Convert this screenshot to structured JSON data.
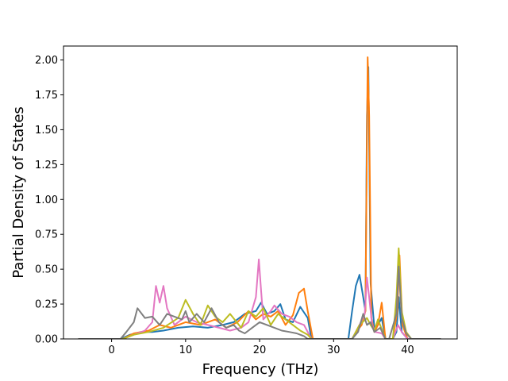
{
  "chart_data": {
    "type": "line",
    "title": "",
    "xlabel": "Frequency (THz)",
    "ylabel": "Partial Density of States",
    "xlim": [
      -6.5,
      46.7
    ],
    "ylim": [
      0.0,
      2.1
    ],
    "xticks": [
      0,
      10,
      20,
      30,
      40
    ],
    "xtick_labels": [
      "0",
      "10",
      "20",
      "30",
      "40"
    ],
    "yticks": [
      0.0,
      0.25,
      0.5,
      0.75,
      1.0,
      1.25,
      1.5,
      1.75,
      2.0
    ],
    "ytick_labels": [
      "0.00",
      "0.25",
      "0.50",
      "0.75",
      "1.00",
      "1.25",
      "1.50",
      "1.75",
      "2.00"
    ],
    "grid": false,
    "series": [
      {
        "color": "#1f77b4",
        "x": [
          -4.5,
          1.2,
          2.5,
          4,
          5.5,
          7,
          9,
          11,
          13,
          15,
          16.5,
          18,
          19.5,
          20.2,
          21,
          22,
          22.8,
          23.5,
          24.5,
          25.5,
          26.5,
          27,
          32,
          32.5,
          33,
          33.5,
          34,
          34.3,
          34.5,
          34.7,
          35,
          35.5,
          36,
          36.5,
          37,
          38,
          38.5,
          38.8,
          39.2,
          40,
          40.5,
          44.5
        ],
        "y": [
          0.0,
          0.0,
          0.03,
          0.05,
          0.05,
          0.06,
          0.08,
          0.09,
          0.08,
          0.1,
          0.12,
          0.18,
          0.2,
          0.26,
          0.18,
          0.2,
          0.25,
          0.14,
          0.12,
          0.23,
          0.15,
          0.0,
          0.0,
          0.2,
          0.38,
          0.46,
          0.3,
          0.2,
          1.6,
          1.95,
          0.4,
          0.08,
          0.1,
          0.15,
          0.0,
          0.0,
          0.05,
          0.3,
          0.05,
          0.0,
          0.0,
          0.0
        ]
      },
      {
        "color": "#ff7f0e",
        "x": [
          -4.5,
          1.5,
          3,
          5,
          6.5,
          8,
          10,
          12,
          14,
          15.5,
          17,
          18.5,
          19.5,
          20.5,
          21.5,
          22.5,
          23.5,
          24.5,
          25.3,
          26,
          26.5,
          27.2,
          32.5,
          33.2,
          33.8,
          34.3,
          34.6,
          34.8,
          35.1,
          35.5,
          36,
          36.5,
          37,
          38,
          38.6,
          38.9,
          39.3,
          40,
          40.5,
          44.5
        ],
        "y": [
          0.0,
          0.0,
          0.04,
          0.06,
          0.1,
          0.08,
          0.12,
          0.1,
          0.14,
          0.08,
          0.12,
          0.2,
          0.14,
          0.18,
          0.16,
          0.2,
          0.1,
          0.17,
          0.33,
          0.36,
          0.2,
          0.0,
          0.0,
          0.06,
          0.1,
          0.2,
          2.02,
          1.6,
          0.15,
          0.05,
          0.1,
          0.26,
          0.0,
          0.0,
          0.2,
          0.6,
          0.1,
          0.0,
          0.0,
          0.0
        ]
      },
      {
        "color": "#e377c2",
        "x": [
          -4.5,
          1.5,
          3,
          4.5,
          5.5,
          6,
          6.5,
          7,
          7.5,
          8.5,
          10,
          11.5,
          13,
          14.5,
          16,
          17.5,
          18.5,
          19.5,
          19.9,
          20.2,
          20.5,
          21.5,
          22,
          23,
          24,
          25,
          26,
          27,
          32.5,
          33.5,
          34.2,
          34.5,
          34.8,
          35.2,
          35.6,
          36.5,
          37,
          38,
          38.7,
          39.2,
          40,
          44.5
        ],
        "y": [
          0.0,
          0.0,
          0.03,
          0.06,
          0.12,
          0.38,
          0.26,
          0.38,
          0.22,
          0.1,
          0.16,
          0.12,
          0.1,
          0.08,
          0.06,
          0.08,
          0.12,
          0.3,
          0.57,
          0.35,
          0.14,
          0.2,
          0.24,
          0.18,
          0.16,
          0.12,
          0.1,
          0.0,
          0.0,
          0.1,
          0.18,
          0.44,
          0.3,
          0.1,
          0.05,
          0.04,
          0.0,
          0.0,
          0.1,
          0.05,
          0.0,
          0.0
        ]
      },
      {
        "color": "#bcbd22",
        "x": [
          -4.5,
          1.5,
          3,
          5,
          7,
          9,
          10,
          11,
          12,
          13,
          14,
          15,
          16,
          17.5,
          18.5,
          19.5,
          20.5,
          21.5,
          22.5,
          23.5,
          24.5,
          25.5,
          26.5,
          27,
          32.5,
          33.5,
          34.5,
          35,
          35.5,
          36,
          37,
          38,
          38.5,
          38.8,
          39.2,
          39.8,
          40.5,
          44.5
        ],
        "y": [
          0.0,
          0.0,
          0.03,
          0.05,
          0.08,
          0.15,
          0.28,
          0.18,
          0.1,
          0.24,
          0.16,
          0.12,
          0.18,
          0.08,
          0.2,
          0.16,
          0.22,
          0.1,
          0.18,
          0.14,
          0.1,
          0.06,
          0.03,
          0.0,
          0.0,
          0.1,
          0.15,
          0.1,
          0.06,
          0.14,
          0.0,
          0.0,
          0.3,
          0.65,
          0.2,
          0.05,
          0.0,
          0.0
        ]
      },
      {
        "color": "#7f7f7f",
        "x": [
          -4.5,
          1.2,
          2,
          3,
          3.5,
          4.5,
          5.5,
          6.5,
          7.5,
          8.5,
          9.5,
          10,
          10.5,
          11.5,
          12.5,
          13.5,
          14.5,
          15.5,
          16.5,
          17.2,
          18,
          19,
          20,
          21,
          22,
          23,
          24,
          25,
          26,
          26.5,
          32.5,
          33.3,
          34,
          34.5,
          35,
          35.5,
          36.3,
          37,
          37.5,
          38.5,
          38.8,
          39.2,
          39.8,
          40.5,
          44.5
        ],
        "y": [
          0.0,
          0.0,
          0.05,
          0.12,
          0.22,
          0.15,
          0.16,
          0.1,
          0.18,
          0.16,
          0.14,
          0.2,
          0.12,
          0.18,
          0.12,
          0.22,
          0.12,
          0.08,
          0.1,
          0.06,
          0.04,
          0.08,
          0.12,
          0.1,
          0.08,
          0.06,
          0.05,
          0.04,
          0.02,
          0.0,
          0.0,
          0.05,
          0.18,
          0.1,
          0.12,
          0.05,
          0.08,
          0.0,
          0.0,
          0.18,
          0.52,
          0.15,
          0.04,
          0.0,
          0.0
        ]
      }
    ]
  }
}
